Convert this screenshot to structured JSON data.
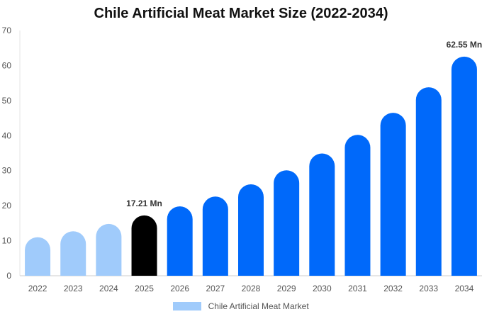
{
  "chart_data": {
    "type": "bar",
    "title": "Chile Artificial Meat Market Size (2022-2034)",
    "categories": [
      "2022",
      "2023",
      "2024",
      "2025",
      "2026",
      "2027",
      "2028",
      "2029",
      "2030",
      "2031",
      "2032",
      "2033",
      "2034"
    ],
    "series": [
      {
        "name": "Chile Artificial Meat Market",
        "values": [
          11.0,
          12.7,
          14.8,
          17.21,
          19.8,
          22.6,
          26.1,
          30.1,
          34.9,
          40.2,
          46.5,
          53.8,
          62.55
        ]
      }
    ],
    "ylim": [
      0,
      70
    ],
    "yticks": [
      0,
      10,
      20,
      30,
      40,
      50,
      60,
      70
    ],
    "data_labels": [
      {
        "category": "2025",
        "text": "17.21 Mn"
      },
      {
        "category": "2034",
        "text": "62.55 Mn"
      }
    ],
    "bar_colors": {
      "historical": "#a0cbfb",
      "base_year": "#000000",
      "forecast": "#0069fa"
    },
    "historical_categories": [
      "2022",
      "2023",
      "2024"
    ],
    "base_year_category": "2025",
    "legend_color": "#a0cbfb",
    "legend_position": "bottom-center",
    "grid": false
  }
}
